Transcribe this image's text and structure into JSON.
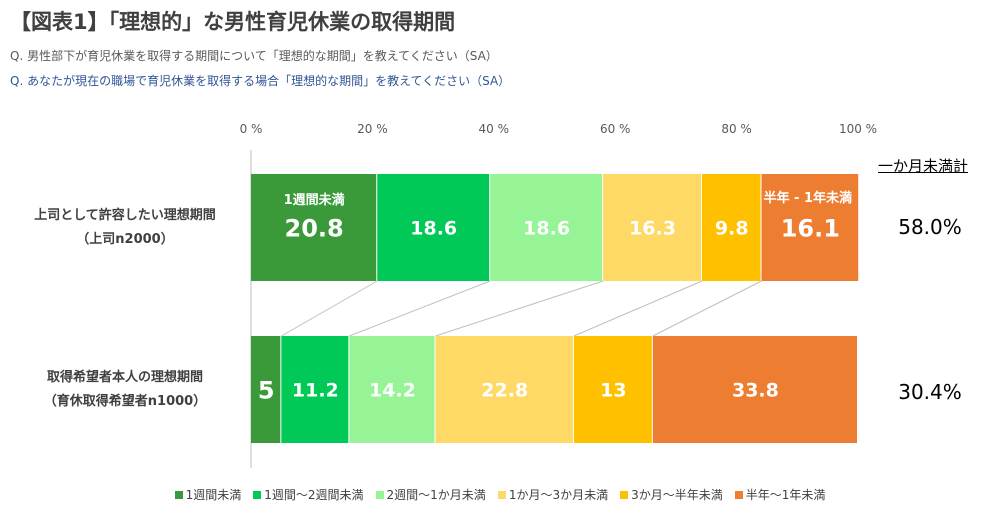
{
  "header": {
    "title": "【図表1】「理想的」な男性育児休業の取得期間",
    "q1": "Q.  男性部下が育児休業を取得する期間について「理想的な期間」を教えてください（SA）",
    "q2": "Q.  あなたが現在の職場で育児休業を取得する場合「理想的な期間」を教えてください（SA）"
  },
  "rows": [
    {
      "label_line1": "上司として許容したい理想期間",
      "label_line2": "（上司n2000）",
      "summary": "58.0%"
    },
    {
      "label_line1": "取得希望者本人の理想期間",
      "label_line2": "（育休取得希望者n1000）",
      "summary": "30.4%"
    }
  ],
  "summary_header": "一か月未満計",
  "colors": {
    "s1": "#3a9a3a",
    "s2": "#00c957",
    "s3": "#96f496",
    "s4": "#ffd966",
    "s5": "#ffc000",
    "s6": "#ed7d31"
  },
  "chart_data": {
    "type": "bar",
    "orientation": "horizontal-stacked-100",
    "x_ticks": [
      "0 %",
      "20 %",
      "40 %",
      "60 %",
      "80 %",
      "100 %"
    ],
    "xlim": [
      0,
      100
    ],
    "categories": [
      "上司として許容したい理想期間（上司n2000）",
      "取得希望者本人の理想期間（育休取得希望者n1000）"
    ],
    "series": [
      {
        "name": "1週間未満",
        "values": [
          20.8,
          5
        ],
        "labels": [
          "20.8",
          "5"
        ],
        "color": "#3a9a3a"
      },
      {
        "name": "1週間～2週間未満",
        "values": [
          18.6,
          11.2
        ],
        "labels": [
          "18.6",
          "11.2"
        ],
        "color": "#00c957"
      },
      {
        "name": "2週間～1か月未満",
        "values": [
          18.6,
          14.2
        ],
        "labels": [
          "18.6",
          "14.2"
        ],
        "color": "#96f496"
      },
      {
        "name": "1か月～3か月未満",
        "values": [
          16.3,
          22.8
        ],
        "labels": [
          "16.3",
          "22.8"
        ],
        "color": "#ffd966"
      },
      {
        "name": "3か月～半年未満",
        "values": [
          9.8,
          13
        ],
        "labels": [
          "9.8",
          "13"
        ],
        "color": "#ffc000"
      },
      {
        "name": "半年～1年未満",
        "values": [
          16.1,
          33.8
        ],
        "labels": [
          "16.1",
          "33.8"
        ],
        "color": "#ed7d31"
      }
    ],
    "annotations": [
      "1週間未満",
      "半年 - 1年未満"
    ],
    "legend_position": "bottom"
  }
}
